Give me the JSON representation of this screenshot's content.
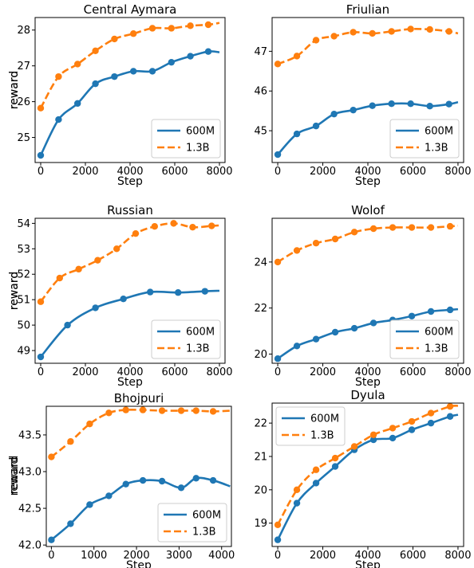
{
  "colors": {
    "series_600m": "#1f77b4",
    "series_13b": "#ff7f0e"
  },
  "chart_data": [
    {
      "type": "line",
      "title": "Central Aymara",
      "xlabel": "Step",
      "ylabel": "reward",
      "xlim": [
        -250,
        8250
      ],
      "ylim": [
        24.3,
        28.35
      ],
      "xticks": [
        0,
        2000,
        4000,
        6000,
        8000
      ],
      "yticks": [
        25,
        26,
        27,
        28
      ],
      "legend_position": "lower-right",
      "grid": false,
      "series": [
        {
          "name": "600M",
          "style": "solid",
          "color": "#1f77b4",
          "x": [
            0,
            800,
            1650,
            2450,
            3300,
            4150,
            5000,
            5850,
            6700,
            7500,
            8000
          ],
          "y": [
            24.5,
            25.5,
            25.95,
            26.5,
            26.7,
            26.85,
            26.85,
            27.1,
            27.27,
            27.4,
            27.38
          ]
        },
        {
          "name": "1.3B",
          "style": "dashed",
          "color": "#ff7f0e",
          "x": [
            0,
            800,
            1650,
            2450,
            3300,
            4150,
            5000,
            5850,
            6700,
            7500,
            8000
          ],
          "y": [
            25.82,
            26.7,
            27.05,
            27.42,
            27.75,
            27.9,
            28.05,
            28.05,
            28.12,
            28.15,
            28.2
          ]
        }
      ]
    },
    {
      "type": "line",
      "title": "Friulian",
      "xlabel": "Step",
      "ylabel": "reward",
      "xlim": [
        -250,
        8250
      ],
      "ylim": [
        44.2,
        47.85
      ],
      "xticks": [
        0,
        2000,
        4000,
        6000,
        8000
      ],
      "yticks": [
        45,
        46,
        47
      ],
      "legend_position": "lower-right",
      "grid": false,
      "series": [
        {
          "name": "600M",
          "style": "solid",
          "color": "#1f77b4",
          "x": [
            0,
            850,
            1700,
            2500,
            3350,
            4200,
            5050,
            5900,
            6750,
            7600,
            8000
          ],
          "y": [
            44.4,
            44.92,
            45.12,
            45.42,
            45.52,
            45.63,
            45.68,
            45.68,
            45.62,
            45.67,
            45.72
          ]
        },
        {
          "name": "1.3B",
          "style": "dashed",
          "color": "#ff7f0e",
          "x": [
            0,
            850,
            1700,
            2500,
            3350,
            4200,
            5050,
            5900,
            6750,
            7600,
            8000
          ],
          "y": [
            46.68,
            46.88,
            47.28,
            47.38,
            47.48,
            47.45,
            47.5,
            47.56,
            47.55,
            47.5,
            47.45
          ]
        }
      ]
    },
    {
      "type": "line",
      "title": "Russian",
      "xlabel": "Step",
      "ylabel": "reward",
      "xlim": [
        -250,
        8250
      ],
      "ylim": [
        48.5,
        54.2
      ],
      "xticks": [
        0,
        2000,
        4000,
        6000,
        8000
      ],
      "yticks": [
        49,
        50,
        51,
        52,
        53,
        54
      ],
      "legend_position": "lower-right",
      "grid": false,
      "series": [
        {
          "name": "600M",
          "style": "solid",
          "color": "#1f77b4",
          "x": [
            0,
            1200,
            2450,
            3700,
            4900,
            6150,
            7350,
            8000
          ],
          "y": [
            48.75,
            50.0,
            50.68,
            51.03,
            51.3,
            51.28,
            51.33,
            51.35
          ]
        },
        {
          "name": "1.3B",
          "style": "dashed",
          "color": "#ff7f0e",
          "x": [
            0,
            850,
            1700,
            2550,
            3400,
            4250,
            5100,
            5950,
            6800,
            7650,
            8000
          ],
          "y": [
            50.92,
            51.85,
            52.2,
            52.55,
            53.0,
            53.6,
            53.88,
            54.0,
            53.85,
            53.9,
            53.92
          ]
        }
      ]
    },
    {
      "type": "line",
      "title": "Wolof",
      "xlabel": "Step",
      "ylabel": "reward",
      "xlim": [
        -250,
        8250
      ],
      "ylim": [
        19.6,
        25.9
      ],
      "xticks": [
        0,
        2000,
        4000,
        6000,
        8000
      ],
      "yticks": [
        20,
        22,
        24
      ],
      "legend_position": "lower-right",
      "grid": false,
      "series": [
        {
          "name": "600M",
          "style": "solid",
          "color": "#1f77b4",
          "x": [
            0,
            850,
            1700,
            2550,
            3400,
            4250,
            5100,
            5950,
            6800,
            7650,
            8000
          ],
          "y": [
            19.8,
            20.35,
            20.65,
            20.95,
            21.12,
            21.35,
            21.48,
            21.65,
            21.85,
            21.92,
            21.95
          ]
        },
        {
          "name": "1.3B",
          "style": "dashed",
          "color": "#ff7f0e",
          "x": [
            0,
            850,
            1700,
            2550,
            3400,
            4250,
            5100,
            5950,
            6800,
            7650,
            8000
          ],
          "y": [
            24.0,
            24.5,
            24.82,
            25.0,
            25.3,
            25.45,
            25.5,
            25.5,
            25.5,
            25.55,
            25.58
          ]
        }
      ]
    },
    {
      "type": "line",
      "title": "Bhojpuri",
      "xlabel": "Step",
      "ylabel": "reward",
      "xlim": [
        -120,
        4230
      ],
      "ylim": [
        41.98,
        43.89
      ],
      "xticks": [
        0,
        1000,
        2000,
        3000,
        4000
      ],
      "yticks": [
        42.0,
        42.5,
        43.0,
        43.5
      ],
      "legend_position": "lower-right",
      "grid": false,
      "series": [
        {
          "name": "600M",
          "style": "solid",
          "color": "#1f77b4",
          "x": [
            0,
            450,
            900,
            1350,
            1750,
            2150,
            2600,
            3050,
            3400,
            3800,
            4200
          ],
          "y": [
            42.07,
            42.29,
            42.55,
            42.67,
            42.83,
            42.88,
            42.87,
            42.78,
            42.91,
            42.88,
            42.8
          ]
        },
        {
          "name": "1.3B",
          "style": "dashed",
          "color": "#ff7f0e",
          "x": [
            0,
            450,
            900,
            1350,
            1750,
            2150,
            2600,
            3050,
            3400,
            3800,
            4200
          ],
          "y": [
            43.2,
            43.41,
            43.65,
            43.8,
            43.84,
            43.84,
            43.83,
            43.83,
            43.83,
            43.82,
            43.83
          ]
        }
      ]
    },
    {
      "type": "line",
      "title": "Dyula",
      "xlabel": "Step",
      "ylabel": "reward",
      "xlim": [
        -250,
        8250
      ],
      "ylim": [
        18.3,
        22.6
      ],
      "xticks": [
        0,
        2000,
        4000,
        6000,
        8000
      ],
      "yticks": [
        19,
        20,
        21,
        22
      ],
      "legend_position": "upper-left",
      "grid": false,
      "series": [
        {
          "name": "600M",
          "style": "solid",
          "color": "#1f77b4",
          "x": [
            0,
            850,
            1700,
            2550,
            3400,
            4250,
            5100,
            5950,
            6800,
            7650,
            8000
          ],
          "y": [
            18.5,
            19.6,
            20.2,
            20.7,
            21.2,
            21.5,
            21.55,
            21.8,
            22.0,
            22.2,
            22.25
          ]
        },
        {
          "name": "1.3B",
          "style": "dashed",
          "color": "#ff7f0e",
          "x": [
            0,
            850,
            1700,
            2550,
            3400,
            4250,
            5100,
            5950,
            6800,
            7650,
            8000
          ],
          "y": [
            18.95,
            20.0,
            20.6,
            20.95,
            21.3,
            21.65,
            21.85,
            22.05,
            22.3,
            22.5,
            22.52
          ]
        }
      ]
    }
  ]
}
